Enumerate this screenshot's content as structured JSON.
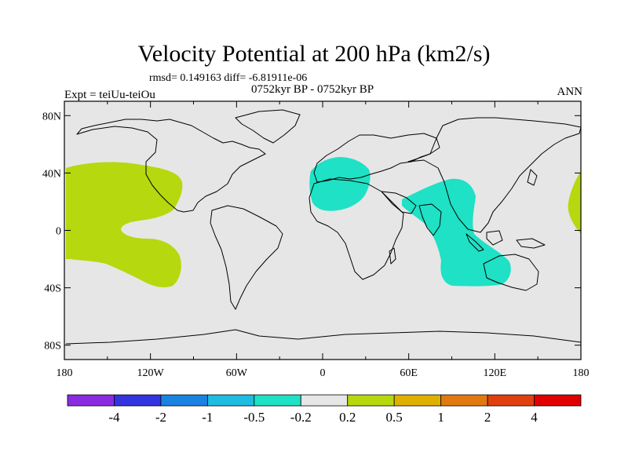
{
  "title": "Velocity Potential at 200 hPa (km2/s)",
  "subtitle_stats": "rmsd= 0.149163 diff= -6.81911e-06",
  "subtitle_period": "0752kyr BP - 0752kyr BP",
  "left_label": "Expt = teiUu-teiOu",
  "right_label": "ANN",
  "map": {
    "lon_ticks": [
      "180",
      "120W",
      "60W",
      "0",
      "60E",
      "120E",
      "180"
    ],
    "lat_ticks": [
      "80N",
      "40N",
      "0",
      "40S",
      "80S"
    ],
    "background_color": "#e6e6e6",
    "regions": [
      {
        "name": "eastern-pacific-positive",
        "level": "0.2 to 0.5",
        "color": "#b5d80e"
      },
      {
        "name": "mediterranean-negative",
        "level": "-0.5 to -0.2",
        "color": "#1ee1c5"
      },
      {
        "name": "indian-ocean-negative",
        "level": "-0.5 to -0.2",
        "color": "#1ee1c5"
      },
      {
        "name": "west-pacific-positive",
        "level": "0.2 to 0.5",
        "color": "#b5d80e"
      }
    ]
  },
  "colorbar": {
    "colors": [
      "#8a2be2",
      "#3333e0",
      "#1a82e0",
      "#1ebce0",
      "#1ee1c5",
      "#e6e6e6",
      "#b5d80e",
      "#e0b000",
      "#e07a10",
      "#e04010",
      "#e00000"
    ],
    "labels": [
      "-4",
      "-2",
      "-1",
      "-0.5",
      "-0.2",
      "0.2",
      "0.5",
      "1",
      "2",
      "4"
    ]
  }
}
